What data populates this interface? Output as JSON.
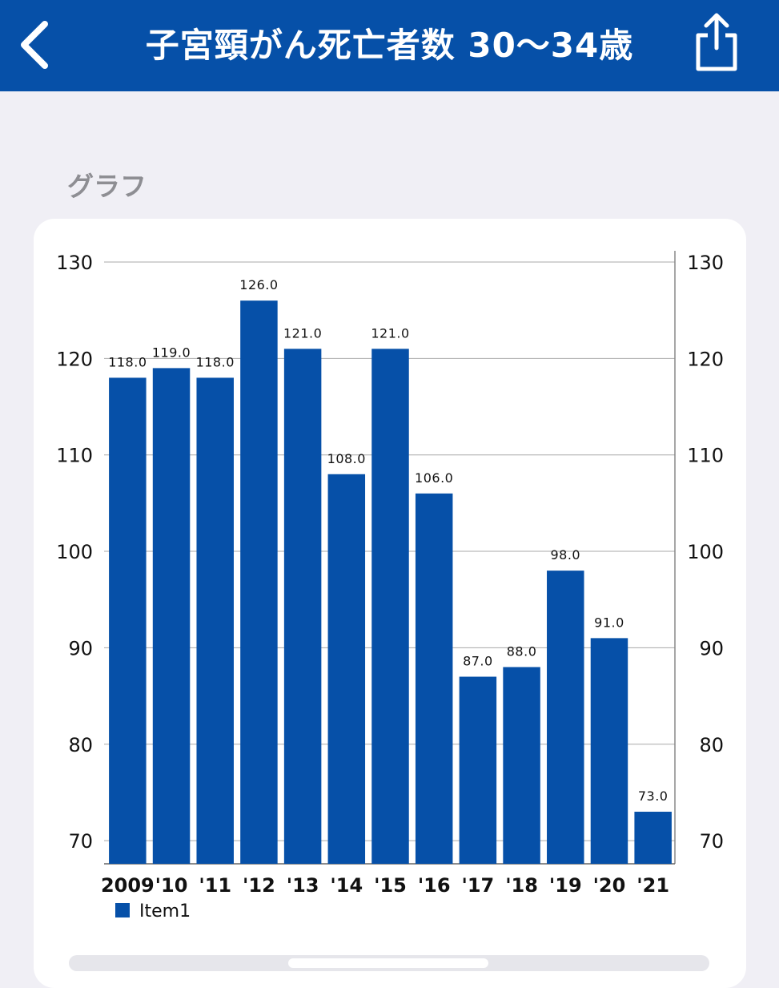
{
  "header": {
    "title": "子宮頸がん死亡者数 30～34歳",
    "back_icon": "chevron-left-icon",
    "share_icon": "share-icon"
  },
  "section": {
    "label": "グラフ"
  },
  "colors": {
    "header_bg": "#0650a8",
    "bar": "#0650a8",
    "background": "#f0eff5"
  },
  "chart_data": {
    "type": "bar",
    "categories": [
      "2009",
      "'10",
      "'11",
      "'12",
      "'13",
      "'14",
      "'15",
      "'16",
      "'17",
      "'18",
      "'19",
      "'20",
      "'21"
    ],
    "series": [
      {
        "name": "Item1",
        "values": [
          118,
          119,
          118,
          126,
          121,
          108,
          121,
          106,
          87,
          88,
          98,
          91,
          73
        ],
        "labels": [
          "118.0",
          "119.0",
          "118.0",
          "126.0",
          "121.0",
          "108.0",
          "121.0",
          "106.0",
          "87.0",
          "88.0",
          "98.0",
          "91.0",
          "73.0"
        ]
      }
    ],
    "ylim": [
      67.6,
      130
    ],
    "y_ticks": [
      70,
      80,
      90,
      100,
      110,
      120,
      130
    ],
    "y_axis_right": true,
    "grid": true,
    "legend": "bottom-left",
    "title": "",
    "xlabel": "",
    "ylabel": ""
  }
}
